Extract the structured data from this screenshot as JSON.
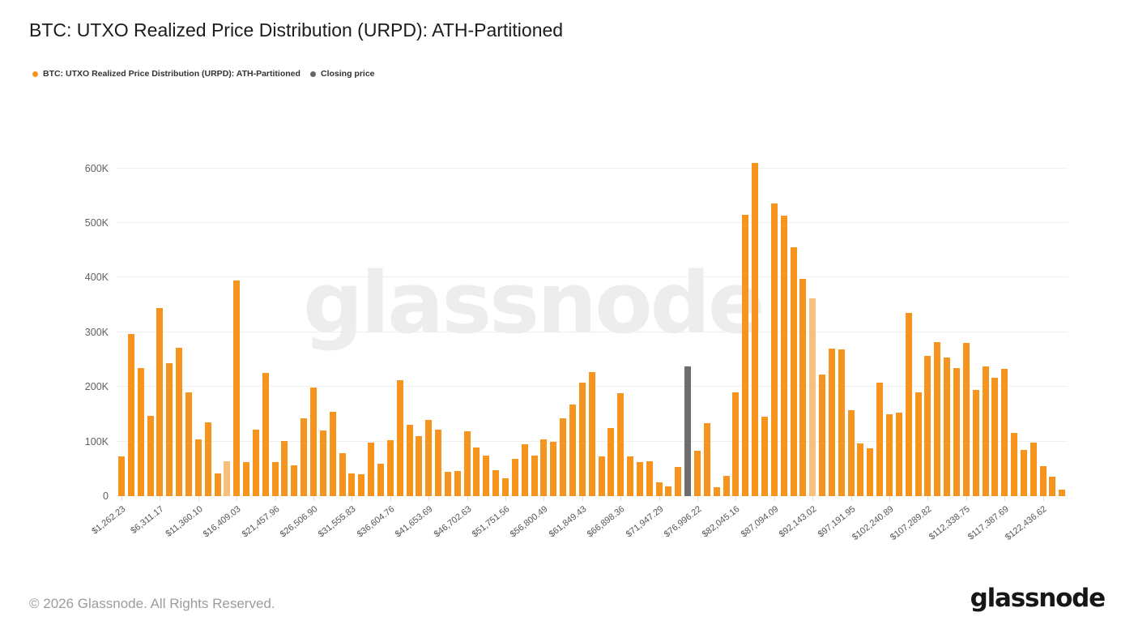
{
  "header": {
    "title": "BTC: UTXO Realized Price Distribution (URPD): ATH-Partitioned"
  },
  "legend": {
    "items": [
      {
        "label": "BTC: UTXO Realized Price Distribution (URPD): ATH-Partitioned",
        "color": "#f7941d"
      },
      {
        "label": "Closing price",
        "color": "#666666"
      }
    ]
  },
  "watermark": {
    "text": "glassnode"
  },
  "footer": {
    "copyright": "© 2026 Glassnode. All Rights Reserved.",
    "brand": "glassnode"
  },
  "chart_data": {
    "type": "bar",
    "title": "BTC: UTXO Realized Price Distribution (URPD): ATH-Partitioned",
    "xlabel": "",
    "ylabel": "",
    "y_unit": "K",
    "ylim_k": [
      0,
      620
    ],
    "grid": "horizontal",
    "legend_position": "top-left",
    "y_ticks": [
      {
        "value": 0,
        "label": "0"
      },
      {
        "value": 100,
        "label": "100K"
      },
      {
        "value": 200,
        "label": "200K"
      },
      {
        "value": 300,
        "label": "300K"
      },
      {
        "value": 400,
        "label": "400K"
      },
      {
        "value": 500,
        "label": "500K"
      },
      {
        "value": 600,
        "label": "600K"
      }
    ],
    "x_tick_labels": [
      "$1,262.23",
      "$6,311.17",
      "$11,360.10",
      "$16,409.03",
      "$21,457.96",
      "$26,506.90",
      "$31,555.83",
      "$36,604.76",
      "$41,653.69",
      "$46,702.63",
      "$51,751.56",
      "$56,800.49",
      "$61,849.43",
      "$66,898.36",
      "$71,947.29",
      "$76,996.22",
      "$82,045.16",
      "$87,094.09",
      "$92,143.02",
      "$97,191.95",
      "$102,240.89",
      "$107,289.82",
      "$112,338.75",
      "$117,387.69",
      "$122,436.62"
    ],
    "x_ticks_every_n_bars": 4,
    "series": [
      {
        "name": "BTC: UTXO Realized Price Distribution (URPD): ATH-Partitioned",
        "color": "#f7941d"
      },
      {
        "name": "Closing price",
        "color": "#6d6d6d"
      }
    ],
    "bar_values_k": [
      73,
      297,
      235,
      147,
      344,
      243,
      272,
      190,
      104,
      135,
      42,
      64,
      395,
      63,
      121,
      226,
      62,
      101,
      57,
      143,
      199,
      120,
      154,
      79,
      41,
      40,
      98,
      60,
      103,
      212,
      130,
      110,
      140,
      121,
      44,
      46,
      119,
      89,
      74,
      47,
      33,
      68,
      95,
      74,
      104,
      100,
      143,
      168,
      208,
      227,
      73,
      125,
      188,
      72,
      62,
      64,
      25,
      18,
      53,
      238,
      83,
      134,
      16,
      37,
      190,
      515,
      610,
      145,
      536,
      513,
      455,
      397,
      362,
      222,
      270,
      268,
      157,
      97,
      88,
      208,
      150,
      153,
      335,
      190,
      256,
      282,
      253,
      234,
      281,
      195,
      238,
      216,
      233,
      116,
      84,
      98,
      55,
      36,
      12
    ],
    "closing_price_bar_index": 59,
    "closing_price_value_k": 238,
    "pale_bar_indices": [
      11,
      72
    ]
  }
}
